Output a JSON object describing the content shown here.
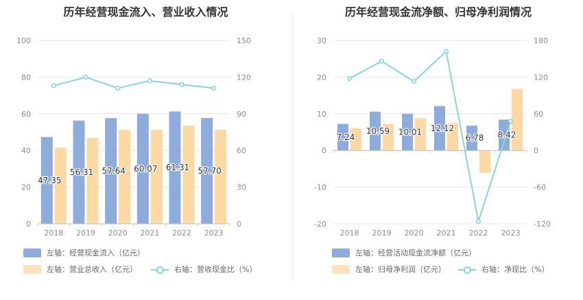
{
  "colors": {
    "primary": "#8eacdb",
    "secondary": "#fdd8a0",
    "line": "#86d5dc"
  },
  "left": {
    "title": "历年经营现金流入、营业收入情况",
    "legend": {
      "primary": "左轴：经营现金流入（亿元）",
      "secondary": "左轴：营业总收入（亿元）",
      "line": "右轴：营收现金比（%）"
    }
  },
  "right": {
    "title": "历年经营现金流净额、归母净利润情况",
    "legend": {
      "primary": "左轴：经营活动现金流净额（亿元）",
      "secondary": "左轴：归母净利润（亿元）",
      "line": "右轴：净现比（%）"
    }
  },
  "chart_data": [
    {
      "type": "bar",
      "categories": [
        "2018",
        "2019",
        "2020",
        "2021",
        "2022",
        "2023"
      ],
      "series": [
        {
          "name": "左轴：经营现金流入（亿元）",
          "axis": "left",
          "values": [
            47.35,
            56.31,
            57.64,
            60.07,
            61.31,
            57.7
          ],
          "labels": [
            "47.35",
            "56.31",
            "57.64",
            "60.07",
            "61.31",
            "57.70"
          ]
        },
        {
          "name": "左轴：营业总收入（亿元）",
          "axis": "left",
          "values": [
            41.5,
            46.8,
            51.2,
            51.2,
            53.5,
            51.3
          ]
        },
        {
          "name": "右轴：营收现金比（%）",
          "axis": "right",
          "type": "line",
          "values": [
            113,
            120,
            111,
            117,
            114,
            111
          ]
        }
      ],
      "yleft": {
        "ylim": [
          0,
          100
        ],
        "ticks": [
          0,
          20,
          40,
          60,
          80,
          100
        ]
      },
      "yright": {
        "ylim": [
          0,
          150
        ],
        "ticks": [
          0,
          30,
          60,
          90,
          120,
          150
        ]
      },
      "grid": true,
      "legend_position": "bottom-left"
    },
    {
      "type": "bar",
      "categories": [
        "2018",
        "2019",
        "2020",
        "2021",
        "2022",
        "2023"
      ],
      "series": [
        {
          "name": "左轴：经营活动现金流净额（亿元）",
          "axis": "left",
          "values": [
            7.24,
            10.59,
            10.01,
            12.12,
            6.78,
            8.42
          ],
          "labels": [
            "7.24",
            "10.59",
            "10.01",
            "12.12",
            "6.78",
            "8.42"
          ]
        },
        {
          "name": "左轴：归母净利润（亿元）",
          "axis": "left",
          "values": [
            6.1,
            7.2,
            8.8,
            7.4,
            -6.1,
            16.8
          ]
        },
        {
          "name": "右轴：净现比（%）",
          "axis": "right",
          "type": "line",
          "values": [
            118,
            146,
            113,
            162,
            -116,
            48
          ]
        }
      ],
      "yleft": {
        "ylim": [
          -20,
          30
        ],
        "ticks": [
          -20,
          -10,
          0,
          10,
          20,
          30
        ]
      },
      "yright": {
        "ylim": [
          -120,
          180
        ],
        "ticks": [
          -120,
          -60,
          0,
          60,
          120,
          180
        ]
      },
      "grid": true,
      "legend_position": "bottom-left"
    }
  ]
}
